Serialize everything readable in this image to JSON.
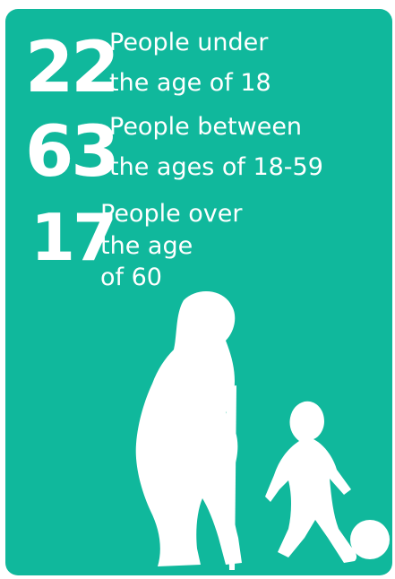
{
  "stats": [
    {
      "number": 22,
      "lines": [
        "People under",
        "the age of 18"
      ]
    },
    {
      "number": 63,
      "lines": [
        "People between",
        "the ages of 18-59"
      ]
    },
    {
      "number": 17,
      "lines": [
        "People over",
        "the age",
        "of 60"
      ]
    }
  ]
}
